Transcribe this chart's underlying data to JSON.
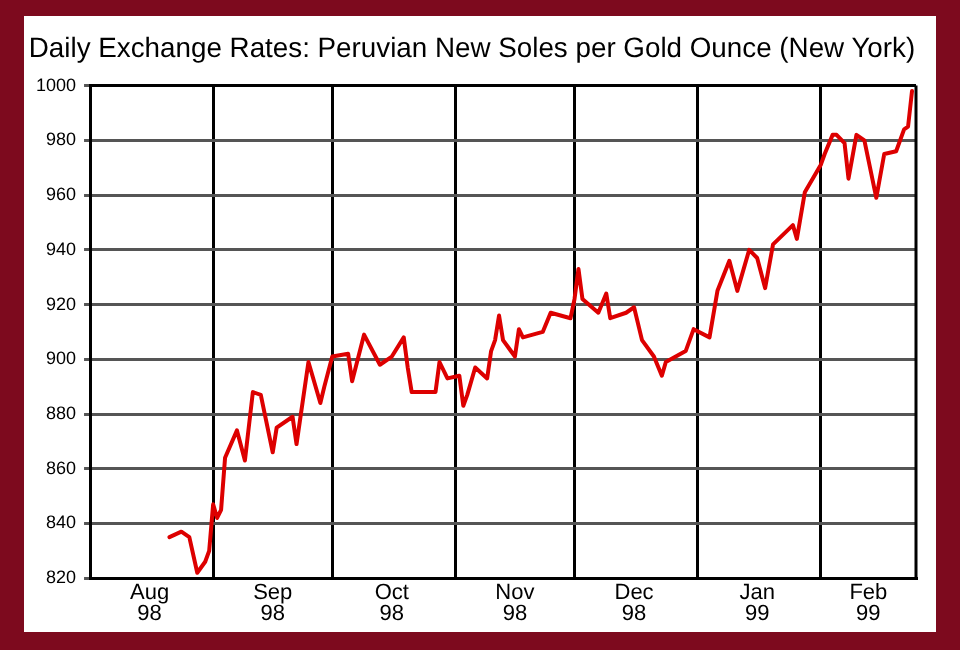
{
  "chart_data": {
    "type": "line",
    "title": "Daily Exchange Rates: Peruvian New Soles per Gold Ounce (New York)",
    "x": [
      "1998-08-21",
      "1998-08-24",
      "1998-08-26",
      "1998-08-28",
      "1998-08-30",
      "1998-08-31",
      "1998-09-01",
      "1998-09-02",
      "1998-09-03",
      "1998-09-04",
      "1998-09-07",
      "1998-09-09",
      "1998-09-11",
      "1998-09-13",
      "1998-09-16",
      "1998-09-17",
      "1998-09-21",
      "1998-09-22",
      "1998-09-25",
      "1998-09-28",
      "1998-09-29",
      "1998-10-01",
      "1998-10-05",
      "1998-10-06",
      "1998-10-09",
      "1998-10-13",
      "1998-10-16",
      "1998-10-19",
      "1998-10-20",
      "1998-10-21",
      "1998-10-27",
      "1998-10-28",
      "1998-10-30",
      "1998-11-02",
      "1998-11-03",
      "1998-11-04",
      "1998-11-06",
      "1998-11-09",
      "1998-11-10",
      "1998-11-11",
      "1998-11-12",
      "1998-11-13",
      "1998-11-16",
      "1998-11-17",
      "1998-11-18",
      "1998-11-23",
      "1998-11-25",
      "1998-11-30",
      "1998-12-01",
      "1998-12-02",
      "1998-12-03",
      "1998-12-07",
      "1998-12-09",
      "1998-12-10",
      "1998-12-14",
      "1998-12-16",
      "1998-12-18",
      "1998-12-21",
      "1998-12-23",
      "1998-12-24",
      "1998-12-29",
      "1998-12-31",
      "1999-01-04",
      "1999-01-06",
      "1999-01-09",
      "1999-01-11",
      "1999-01-14",
      "1999-01-16",
      "1999-01-18",
      "1999-01-20",
      "1999-01-25",
      "1999-01-26",
      "1999-01-28",
      "1999-02-01",
      "1999-02-02",
      "1999-02-04",
      "1999-02-05",
      "1999-02-07",
      "1999-02-08",
      "1999-02-10",
      "1999-02-12",
      "1999-02-15",
      "1999-02-17",
      "1999-02-20",
      "1999-02-22",
      "1999-02-23",
      "1999-02-24"
    ],
    "series": [
      {
        "color": "#dd0000",
        "values": [
          835,
          837,
          835,
          822,
          826,
          830,
          847,
          842,
          845,
          864,
          874,
          863,
          888,
          887,
          866,
          875,
          879,
          869,
          899,
          884,
          890,
          901,
          902,
          892,
          909,
          898,
          901,
          908,
          897,
          888,
          888,
          899,
          893,
          894,
          883,
          887,
          897,
          893,
          903,
          907,
          916,
          907,
          901,
          911,
          908,
          910,
          917,
          915,
          922,
          933,
          922,
          917,
          924,
          915,
          917,
          919,
          907,
          901,
          894,
          899,
          903,
          911,
          908,
          925,
          936,
          925,
          940,
          937,
          926,
          942,
          949,
          944,
          961,
          971,
          975,
          982,
          982,
          979,
          966,
          982,
          980,
          959,
          975,
          976,
          984,
          985,
          998
        ]
      }
    ],
    "xlim": [
      "1998-08-01",
      "1999-02-25"
    ],
    "xticks": [
      {
        "value": "1998-08-01",
        "label": null
      },
      {
        "value": "1998-08-16",
        "label": "Aug 98"
      },
      {
        "value": "1998-09-01",
        "label": null
      },
      {
        "value": "1998-09-16",
        "label": "Sep 98"
      },
      {
        "value": "1998-10-01",
        "label": null
      },
      {
        "value": "1998-10-16",
        "label": "Oct 98"
      },
      {
        "value": "1998-11-01",
        "label": null
      },
      {
        "value": "1998-11-16",
        "label": "Nov 98"
      },
      {
        "value": "1998-12-01",
        "label": null
      },
      {
        "value": "1998-12-16",
        "label": "Dec 98"
      },
      {
        "value": "1999-01-01",
        "label": null
      },
      {
        "value": "1999-01-16",
        "label": "Jan 99"
      },
      {
        "value": "1999-02-01",
        "label": null
      },
      {
        "value": "1999-02-13",
        "label": "Feb 99"
      }
    ],
    "ylim": [
      820,
      1000
    ],
    "yticks": [
      820,
      840,
      860,
      880,
      900,
      920,
      940,
      960,
      980,
      1000
    ],
    "grid": true,
    "legend": false,
    "marker": "none",
    "line_style": "solid"
  }
}
